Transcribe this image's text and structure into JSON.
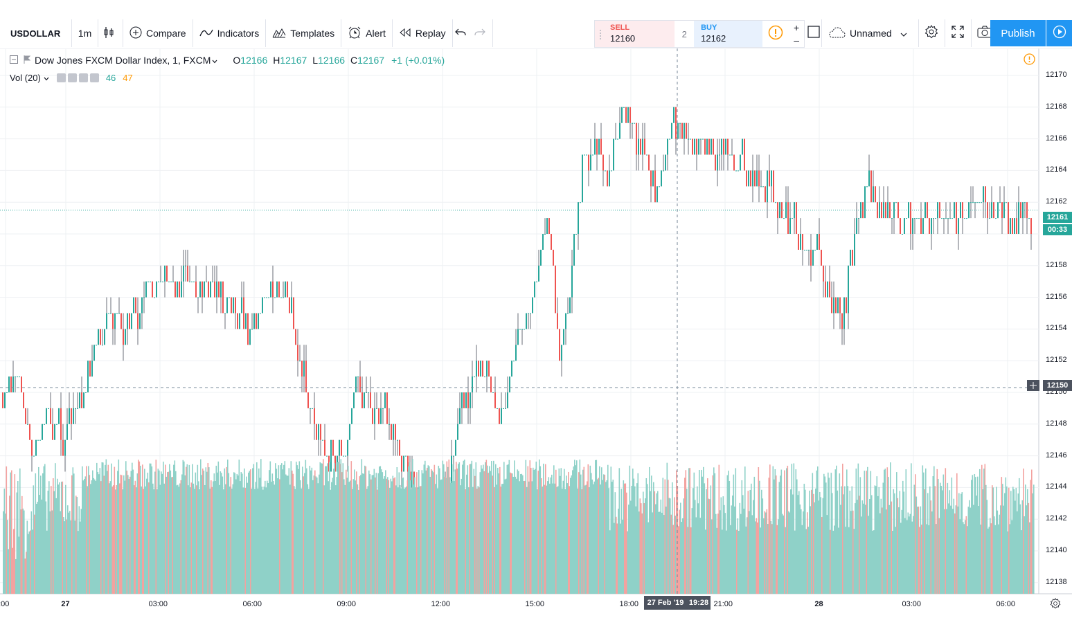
{
  "toolbar": {
    "symbol": "USDOLLAR",
    "interval": "1m",
    "compare_label": "Compare",
    "indicators_label": "Indicators",
    "templates_label": "Templates",
    "alert_label": "Alert",
    "replay_label": "Replay",
    "layout_name": "Unnamed",
    "publish_label": "Publish"
  },
  "trade": {
    "sell_label": "SELL",
    "sell_price": "12160",
    "spread": "2",
    "buy_label": "BUY",
    "buy_price": "12162",
    "qty_plus": "+",
    "qty_minus": "–"
  },
  "legend": {
    "symbol_name": "Dow Jones FXCM Dollar Index, 1, FXCM",
    "o_label": "O",
    "o_value": "12166",
    "h_label": "H",
    "h_value": "12167",
    "l_label": "L",
    "l_value": "12166",
    "c_label": "C",
    "c_value": "12167",
    "change": "+1 (+0.01%)",
    "vol_label": "Vol (20)",
    "vol_value": "46",
    "vol_ma_value": "47"
  },
  "price_axis": {
    "ticks": [
      "12170",
      "12168",
      "12166",
      "12164",
      "12162",
      "12160",
      "12158",
      "12156",
      "12154",
      "12152",
      "12150",
      "12148",
      "12146",
      "12144",
      "12142",
      "12140",
      "12138"
    ],
    "last_price": "12161",
    "countdown": "00:33",
    "crosshair_price": "12150"
  },
  "time_axis": {
    "ticks": [
      ":00",
      "27",
      "03:00",
      "06:00",
      "09:00",
      "12:00",
      "15:00",
      "18:00",
      "21:00",
      "28",
      "03:00",
      "06:00"
    ],
    "crosshair_date": "27 Feb '19",
    "crosshair_time": "19:28"
  },
  "colors": {
    "up": "#26a69a",
    "down": "#ef5350",
    "vol_up": "#8fd1c8",
    "vol_down": "#f3a29f",
    "accent": "#2196f3",
    "sell": "#ef5350",
    "buy": "#2196f3"
  },
  "chart_data": {
    "type": "candlestick",
    "title": "Dow Jones FXCM Dollar Index, 1, FXCM",
    "xlabel": "",
    "ylabel": "",
    "ylim": [
      12137,
      12171
    ],
    "x_ticks": [
      ":00",
      "27",
      "03:00",
      "06:00",
      "09:00",
      "12:00",
      "15:00",
      "18:00",
      "21:00",
      "28",
      "03:00",
      "06:00"
    ],
    "price_path": {
      "x": [
        ":00",
        "27",
        "03:00",
        "06:00",
        "09:00",
        "12:00",
        "15:00",
        "18:00",
        "21:00",
        "28",
        "03:00",
        "06:00",
        "06:45"
      ],
      "close": [
        12150,
        12148,
        12155,
        12156,
        12148,
        12142,
        12160,
        12167,
        12164,
        12158,
        12161,
        12161,
        12161
      ]
    },
    "last_price": 12161,
    "crosshair_price": 12150,
    "crosshair_time": "27 Feb '19 19:28",
    "volume_pane": true,
    "grid": true
  }
}
